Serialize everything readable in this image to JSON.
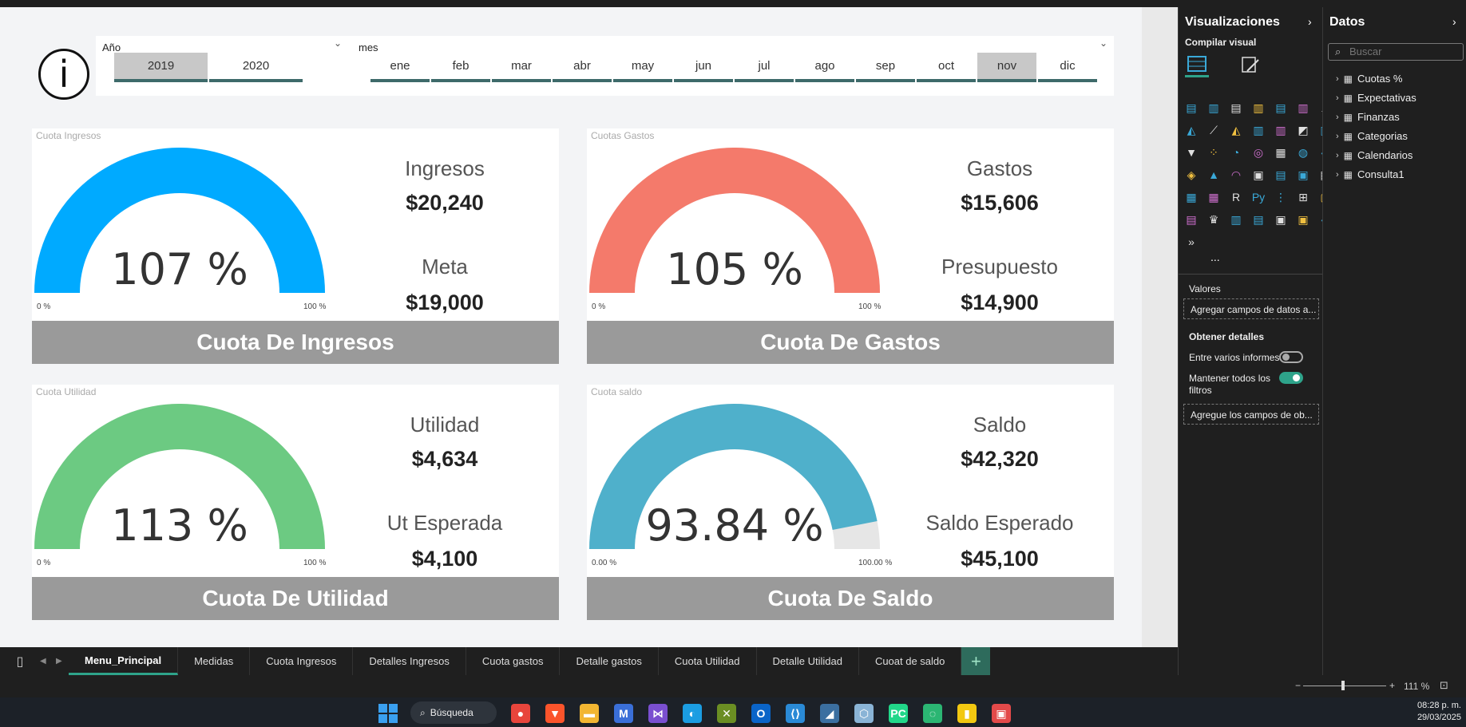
{
  "slicers": {
    "year": {
      "title": "Año",
      "options": [
        "2019",
        "2020"
      ],
      "selected": "2019"
    },
    "month": {
      "title": "mes",
      "options": [
        "ene",
        "feb",
        "mar",
        "abr",
        "may",
        "jun",
        "jul",
        "ago",
        "sep",
        "oct",
        "nov",
        "dic"
      ],
      "selected": "nov"
    }
  },
  "cards": [
    {
      "caption": "Cuota Ingresos",
      "percent": "107 %",
      "fill_fraction": 1.0,
      "color": "#00aaff",
      "min": "0 %",
      "max": "100 %",
      "label1": "Ingresos",
      "value1": "$20,240",
      "label2": "Meta",
      "value2": "$19,000",
      "banner": "Cuota De Ingresos"
    },
    {
      "caption": "Cuotas Gastos",
      "percent": "105 %",
      "fill_fraction": 1.0,
      "color": "#f47a6b",
      "min": "0 %",
      "max": "100 %",
      "label1": "Gastos",
      "value1": "$15,606",
      "label2": "Presupuesto",
      "value2": "$14,900",
      "banner": "Cuota De Gastos"
    },
    {
      "caption": "Cuota Utilidad",
      "percent": "113 %",
      "fill_fraction": 1.0,
      "color": "#6cca82",
      "min": "0 %",
      "max": "100 %",
      "label1": "Utilidad",
      "value1": "$4,634",
      "label2": "Ut Esperada",
      "value2": "$4,100",
      "banner": "Cuota De Utilidad"
    },
    {
      "caption": "Cuota saldo",
      "percent": "93.84 %",
      "fill_fraction": 0.9384,
      "color": "#4fb0cb",
      "min": "0.00 %",
      "max": "100.00 %",
      "label1": "Saldo",
      "value1": "$42,320",
      "label2": "Saldo Esperado",
      "value2": "$45,100",
      "banner": "Cuota De Saldo"
    }
  ],
  "tabs": [
    "Menu_Principal",
    "Medidas",
    "Cuota Ingresos",
    "Detalles Ingresos",
    "Cuota gastos",
    "Detalle gastos",
    "Cuota Utilidad",
    "Detalle Utilidad",
    "Cuoat de saldo"
  ],
  "active_tab": "Menu_Principal",
  "add_tab": "+",
  "visualizations": {
    "title": "Visualizaciones",
    "build_label": "Compilar visual",
    "values_label": "Valores",
    "values_placeholder": "Agregar campos de datos a...",
    "drill_title": "Obtener detalles",
    "cross_report_label": "Entre varios informes",
    "keep_filters_label": "Mantener todos los filtros",
    "drill_placeholder": "Agregue los campos de ob...",
    "more": "..."
  },
  "data_pane": {
    "title": "Datos",
    "search_placeholder": "Buscar",
    "tables": [
      "Cuotas %",
      "Expectativas",
      "Finanzas",
      "Categorias",
      "Calendarios",
      "Consulta1"
    ]
  },
  "status": {
    "zoom": "111 %"
  },
  "taskbar": {
    "search": "Búsqueda",
    "time": "08:28 p. m.",
    "date": "29/03/2025"
  }
}
